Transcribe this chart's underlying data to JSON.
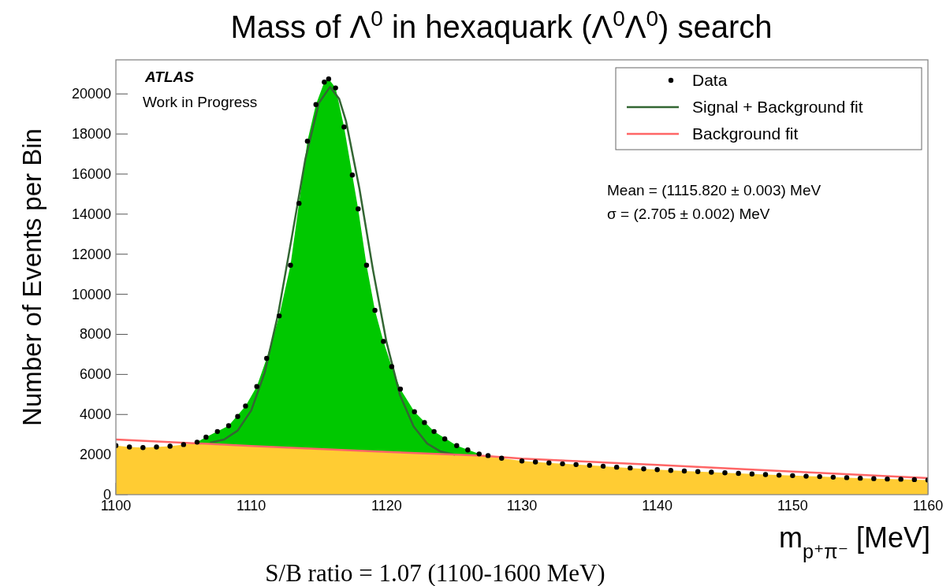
{
  "chart_data": {
    "type": "scatter",
    "title": "Mass of Λ$^{0}$ in hexaquark (Λ$^{0}$Λ$^{0}$) search",
    "xlabel": "m$_{p⁺π⁻}$ [MeV]",
    "ylabel": "Number of Events per Bin",
    "annotations": [
      "ATLAS",
      "Work in Progress",
      "Mean = (1115.820 ± 0.003) MeV",
      "σ = (2.705 ± 0.002) MeV",
      "S/B ratio = 1.07 (1100-1600 MeV)"
    ],
    "xlim": [
      1100,
      1160
    ],
    "xticks": [
      1100,
      1110,
      1120,
      1130,
      1140,
      1150,
      1160
    ],
    "ylim": [
      0,
      21700
    ],
    "yticks": [
      0,
      2000,
      4000,
      6000,
      8000,
      10000,
      12000,
      14000,
      16000,
      18000,
      20000
    ],
    "legend": "top right",
    "series": [
      {
        "type": "area",
        "color": "#00c800",
        "x": [
          1106,
          1106.66,
          1108.33,
          1109.58,
          1110.41,
          1111.14,
          1112.07,
          1112.9,
          1113.53,
          1114.15,
          1114.78,
          1115.4,
          1115.72,
          1116.23,
          1116.86,
          1117.47,
          1117.9,
          1118.52,
          1119.14,
          1119.77,
          1120.38,
          1121.02,
          1122.06,
          1123.51,
          1125.18,
          1126.84,
          1127
        ],
        "values": [
          2620,
          2870,
          3440,
          4420,
          5400,
          6800,
          8920,
          11450,
          14540,
          17640,
          19470,
          20590,
          20750,
          20300,
          18350,
          15950,
          14260,
          11450,
          9200,
          7650,
          6390,
          5270,
          4140,
          3150,
          2450,
          2030,
          1950
        ]
      },
      {
        "type": "area",
        "color": "#ffcc33",
        "x": [
          1100,
          1101,
          1102,
          1103,
          1104,
          1105,
          1106,
          1110,
          1120,
          1127,
          1128.5,
          1130,
          1132,
          1134,
          1136,
          1138,
          1140,
          1142,
          1144,
          1146,
          1148,
          1150,
          1152,
          1154,
          1156,
          1158,
          1160
        ],
        "values": [
          2450,
          2380,
          2350,
          2380,
          2420,
          2500,
          2580,
          2430,
          2130,
          1950,
          1820,
          1680,
          1580,
          1500,
          1420,
          1330,
          1250,
          1180,
          1120,
          1060,
          1000,
          950,
          900,
          850,
          800,
          770,
          730
        ]
      },
      {
        "name": "Data",
        "marker": "circle",
        "color": "#000000",
        "x": [
          1100,
          1101,
          1102,
          1103,
          1104,
          1105,
          1106,
          1106.66,
          1107.5,
          1108.33,
          1109,
          1109.58,
          1110.41,
          1111.14,
          1112.07,
          1112.9,
          1113.53,
          1114.15,
          1114.78,
          1115.4,
          1115.72,
          1116.23,
          1116.86,
          1117.47,
          1117.9,
          1118.52,
          1119.14,
          1119.77,
          1120.38,
          1121.02,
          1122.06,
          1122.8,
          1123.51,
          1124.3,
          1125.18,
          1126,
          1126.84,
          1127.5,
          1128.5,
          1130,
          1131,
          1132,
          1133,
          1134,
          1135,
          1136,
          1137,
          1138,
          1139,
          1140,
          1141,
          1142,
          1143,
          1144,
          1145,
          1146,
          1147,
          1148,
          1149,
          1150,
          1151,
          1152,
          1153,
          1154,
          1155,
          1156,
          1157,
          1158,
          1159,
          1160
        ],
        "values": [
          2450,
          2380,
          2350,
          2380,
          2420,
          2500,
          2620,
          2870,
          3150,
          3440,
          3900,
          4420,
          5400,
          6800,
          8920,
          11450,
          14540,
          17640,
          19470,
          20590,
          20750,
          20300,
          18350,
          15950,
          14260,
          11450,
          9200,
          7650,
          6390,
          5270,
          4140,
          3600,
          3150,
          2780,
          2450,
          2230,
          2030,
          1950,
          1820,
          1680,
          1630,
          1580,
          1540,
          1500,
          1460,
          1420,
          1370,
          1330,
          1290,
          1250,
          1210,
          1180,
          1150,
          1120,
          1090,
          1060,
          1030,
          1000,
          970,
          950,
          920,
          900,
          870,
          850,
          820,
          800,
          780,
          770,
          750,
          730
        ]
      },
      {
        "name": "Signal + Background fit",
        "type": "line",
        "color": "#336633",
        "x": [
          1107,
          1108,
          1109,
          1110,
          1111,
          1112,
          1113,
          1114,
          1115,
          1115.82,
          1116.5,
          1117,
          1118,
          1119,
          1120,
          1121,
          1122,
          1123,
          1124,
          1125
        ],
        "values": [
          2600,
          2750,
          3200,
          4200,
          6100,
          9050,
          12850,
          16750,
          19550,
          20350,
          19750,
          18650,
          15250,
          11200,
          7600,
          4950,
          3400,
          2550,
          2150,
          2000
        ]
      },
      {
        "name": "Background fit",
        "type": "line",
        "color": "#ff6666",
        "x": [
          1100,
          1110,
          1120,
          1127,
          1130,
          1140,
          1150,
          1160
        ],
        "values": [
          2750,
          2430,
          2130,
          1950,
          1800,
          1480,
          1150,
          830
        ]
      }
    ]
  }
}
